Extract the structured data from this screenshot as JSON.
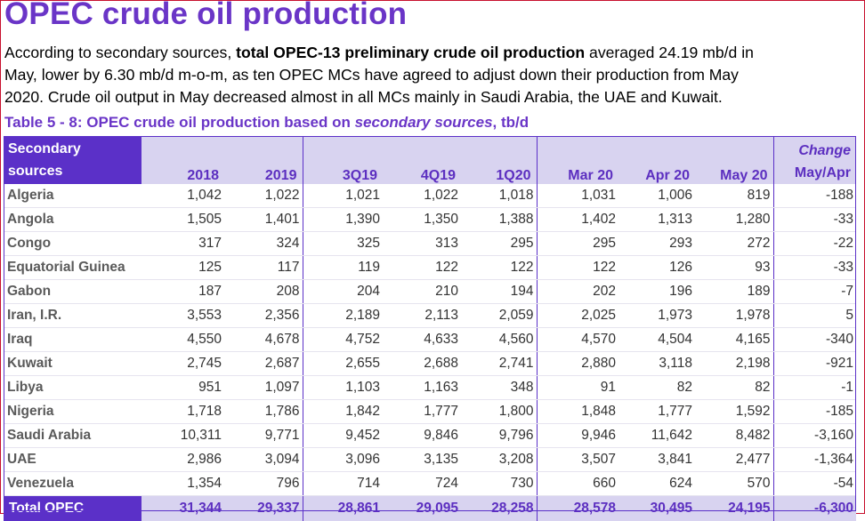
{
  "title": "OPEC crude oil production",
  "intro": {
    "line1_pre": "According to secondary sources, ",
    "line1_bold": "total OPEC-13 preliminary crude oil production",
    "line1_post": " averaged 24.19 mb/d in",
    "line2": "May, lower by 6.30 mb/d m-o-m, as ten OPEC MCs have agreed to adjust down their production from May",
    "line3": "2020. Crude oil output in May decreased almost in all MCs mainly in Saudi Arabia, the UAE and Kuwait."
  },
  "caption": {
    "pre": "Table 5 - 8: OPEC crude oil production based on ",
    "italic": "secondary sources",
    "post": ", tb/d"
  },
  "table": {
    "corner_line1": "Secondary",
    "corner_line2": "sources",
    "columns": [
      "2018",
      "2019",
      "3Q19",
      "4Q19",
      "1Q20",
      "Mar 20",
      "Apr 20",
      "May 20"
    ],
    "change_line1": "Change",
    "change_line2": "May/Apr",
    "rows": [
      {
        "name": "Algeria",
        "values": [
          "1,042",
          "1,022",
          "1,021",
          "1,022",
          "1,018",
          "1,031",
          "1,006",
          "819",
          "-188"
        ]
      },
      {
        "name": "Angola",
        "values": [
          "1,505",
          "1,401",
          "1,390",
          "1,350",
          "1,388",
          "1,402",
          "1,313",
          "1,280",
          "-33"
        ]
      },
      {
        "name": "Congo",
        "values": [
          "317",
          "324",
          "325",
          "313",
          "295",
          "295",
          "293",
          "272",
          "-22"
        ]
      },
      {
        "name": "Equatorial Guinea",
        "values": [
          "125",
          "117",
          "119",
          "122",
          "122",
          "122",
          "126",
          "93",
          "-33"
        ]
      },
      {
        "name": "Gabon",
        "values": [
          "187",
          "208",
          "204",
          "210",
          "194",
          "202",
          "196",
          "189",
          "-7"
        ]
      },
      {
        "name": "Iran, I.R.",
        "values": [
          "3,553",
          "2,356",
          "2,189",
          "2,113",
          "2,059",
          "2,025",
          "1,973",
          "1,978",
          "5"
        ]
      },
      {
        "name": "Iraq",
        "values": [
          "4,550",
          "4,678",
          "4,752",
          "4,633",
          "4,560",
          "4,570",
          "4,504",
          "4,165",
          "-340"
        ]
      },
      {
        "name": "Kuwait",
        "values": [
          "2,745",
          "2,687",
          "2,655",
          "2,688",
          "2,741",
          "2,880",
          "3,118",
          "2,198",
          "-921"
        ]
      },
      {
        "name": "Libya",
        "values": [
          "951",
          "1,097",
          "1,103",
          "1,163",
          "348",
          "91",
          "82",
          "82",
          "-1"
        ]
      },
      {
        "name": "Nigeria",
        "values": [
          "1,718",
          "1,786",
          "1,842",
          "1,777",
          "1,800",
          "1,848",
          "1,777",
          "1,592",
          "-185"
        ]
      },
      {
        "name": "Saudi Arabia",
        "values": [
          "10,311",
          "9,771",
          "9,452",
          "9,846",
          "9,796",
          "9,946",
          "11,642",
          "8,482",
          "-3,160"
        ]
      },
      {
        "name": "UAE",
        "values": [
          "2,986",
          "3,094",
          "3,096",
          "3,135",
          "3,208",
          "3,507",
          "3,841",
          "2,477",
          "-1,364"
        ]
      },
      {
        "name": "Venezuela",
        "values": [
          "1,354",
          "796",
          "714",
          "724",
          "730",
          "660",
          "624",
          "570",
          "-54"
        ]
      }
    ],
    "total": {
      "name": "Total  OPEC",
      "values": [
        "31,344",
        "29,337",
        "28,861",
        "29,095",
        "28,258",
        "28,578",
        "30,495",
        "24,195",
        "-6,300"
      ]
    }
  }
}
